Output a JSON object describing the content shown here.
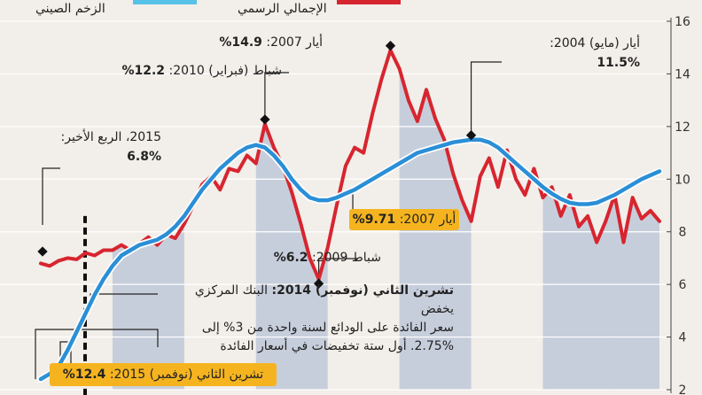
{
  "header": {
    "headline_fragment": "",
    "legend_china": "الزخم الصيني",
    "legend_official": "الإجمالي الرسمي"
  },
  "chart_data": {
    "type": "line",
    "ylim": [
      2,
      16
    ],
    "yticks": [
      2,
      4,
      6,
      8,
      10,
      12,
      14,
      16
    ],
    "colors": {
      "official": "#d7252f",
      "momentum": "#2b8fd6",
      "bands": "#b8c3d6",
      "bg": "#f2eee9"
    },
    "series": [
      {
        "name": "الإجمالي الرسمي",
        "color": "#d7252f",
        "points": [
          [
            2000.0,
            6.8
          ],
          [
            2000.25,
            6.7
          ],
          [
            2000.5,
            6.9
          ],
          [
            2000.75,
            7.0
          ],
          [
            2001.0,
            6.95
          ],
          [
            2001.25,
            7.2
          ],
          [
            2001.5,
            7.1
          ],
          [
            2001.75,
            7.3
          ],
          [
            2002.0,
            7.3
          ],
          [
            2002.25,
            7.5
          ],
          [
            2002.5,
            7.3
          ],
          [
            2002.75,
            7.55
          ],
          [
            2003.0,
            7.8
          ],
          [
            2003.25,
            7.5
          ],
          [
            2003.5,
            7.9
          ],
          [
            2003.75,
            7.75
          ],
          [
            2004.0,
            8.3
          ],
          [
            2004.25,
            9.0
          ],
          [
            2004.5,
            9.8
          ],
          [
            2004.75,
            10.1
          ],
          [
            2005.0,
            9.6
          ],
          [
            2005.25,
            10.4
          ],
          [
            2005.5,
            10.3
          ],
          [
            2005.75,
            10.9
          ],
          [
            2006.0,
            10.6
          ],
          [
            2006.25,
            12.1
          ],
          [
            2006.5,
            11.2
          ],
          [
            2006.75,
            10.5
          ],
          [
            2007.0,
            9.5
          ],
          [
            2007.25,
            8.3
          ],
          [
            2007.5,
            7.0
          ],
          [
            2007.75,
            6.2
          ],
          [
            2008.0,
            7.4
          ],
          [
            2008.25,
            9.0
          ],
          [
            2008.5,
            10.5
          ],
          [
            2008.75,
            11.2
          ],
          [
            2009.0,
            11.0
          ],
          [
            2009.25,
            12.5
          ],
          [
            2009.5,
            13.8
          ],
          [
            2009.75,
            14.9
          ],
          [
            2010.0,
            14.2
          ],
          [
            2010.25,
            13.0
          ],
          [
            2010.5,
            12.2
          ],
          [
            2010.75,
            13.4
          ],
          [
            2011.0,
            12.3
          ],
          [
            2011.25,
            11.5
          ],
          [
            2011.5,
            10.2
          ],
          [
            2011.75,
            9.2
          ],
          [
            2012.0,
            8.4
          ],
          [
            2012.25,
            10.1
          ],
          [
            2012.5,
            10.8
          ],
          [
            2012.75,
            9.7
          ],
          [
            2013.0,
            11.1
          ],
          [
            2013.25,
            10.0
          ],
          [
            2013.5,
            9.4
          ],
          [
            2013.75,
            10.4
          ],
          [
            2014.0,
            9.3
          ],
          [
            2014.25,
            9.7
          ],
          [
            2014.5,
            8.6
          ],
          [
            2014.75,
            9.4
          ],
          [
            2015.0,
            8.2
          ],
          [
            2015.25,
            8.6
          ],
          [
            2015.5,
            7.6
          ],
          [
            2015.75,
            8.4
          ],
          [
            2016.0,
            9.4
          ],
          [
            2016.25,
            7.6
          ],
          [
            2016.5,
            9.3
          ],
          [
            2016.75,
            8.5
          ],
          [
            2017.0,
            8.8
          ],
          [
            2017.25,
            8.4
          ]
        ]
      },
      {
        "name": "الزخم الصيني",
        "color": "#2b8fd6",
        "points": [
          [
            2000.0,
            2.4
          ],
          [
            2000.25,
            2.6
          ],
          [
            2000.5,
            2.9
          ],
          [
            2000.75,
            3.5
          ],
          [
            2001.0,
            4.2
          ],
          [
            2001.25,
            4.9
          ],
          [
            2001.5,
            5.6
          ],
          [
            2001.75,
            6.2
          ],
          [
            2002.0,
            6.7
          ],
          [
            2002.25,
            7.1
          ],
          [
            2002.5,
            7.3
          ],
          [
            2002.75,
            7.5
          ],
          [
            2003.0,
            7.6
          ],
          [
            2003.25,
            7.7
          ],
          [
            2003.5,
            7.9
          ],
          [
            2003.75,
            8.2
          ],
          [
            2004.0,
            8.6
          ],
          [
            2004.25,
            9.1
          ],
          [
            2004.5,
            9.6
          ],
          [
            2004.75,
            10.0
          ],
          [
            2005.0,
            10.4
          ],
          [
            2005.25,
            10.7
          ],
          [
            2005.5,
            11.0
          ],
          [
            2005.75,
            11.2
          ],
          [
            2006.0,
            11.3
          ],
          [
            2006.25,
            11.2
          ],
          [
            2006.5,
            10.9
          ],
          [
            2006.75,
            10.5
          ],
          [
            2007.0,
            10.0
          ],
          [
            2007.25,
            9.6
          ],
          [
            2007.5,
            9.3
          ],
          [
            2007.75,
            9.2
          ],
          [
            2008.0,
            9.2
          ],
          [
            2008.25,
            9.3
          ],
          [
            2008.5,
            9.45
          ],
          [
            2008.75,
            9.6
          ],
          [
            2009.0,
            9.8
          ],
          [
            2009.25,
            10.0
          ],
          [
            2009.5,
            10.2
          ],
          [
            2009.75,
            10.4
          ],
          [
            2010.0,
            10.6
          ],
          [
            2010.25,
            10.8
          ],
          [
            2010.5,
            11.0
          ],
          [
            2010.75,
            11.1
          ],
          [
            2011.0,
            11.2
          ],
          [
            2011.25,
            11.3
          ],
          [
            2011.5,
            11.4
          ],
          [
            2011.75,
            11.45
          ],
          [
            2012.0,
            11.5
          ],
          [
            2012.25,
            11.5
          ],
          [
            2012.5,
            11.4
          ],
          [
            2012.75,
            11.2
          ],
          [
            2013.0,
            10.9
          ],
          [
            2013.25,
            10.6
          ],
          [
            2013.5,
            10.3
          ],
          [
            2013.75,
            10.0
          ],
          [
            2014.0,
            9.7
          ],
          [
            2014.25,
            9.45
          ],
          [
            2014.5,
            9.25
          ],
          [
            2014.75,
            9.1
          ],
          [
            2015.0,
            9.05
          ],
          [
            2015.25,
            9.05
          ],
          [
            2015.5,
            9.1
          ],
          [
            2015.75,
            9.25
          ],
          [
            2016.0,
            9.4
          ],
          [
            2016.25,
            9.6
          ],
          [
            2016.5,
            9.8
          ],
          [
            2016.75,
            10.0
          ],
          [
            2017.0,
            10.15
          ],
          [
            2017.25,
            10.3
          ]
        ]
      }
    ],
    "bands_x": [
      2002,
      2004,
      2006,
      2008,
      2010,
      2012,
      2014,
      2016
    ],
    "band_labels": []
  },
  "annotations": [
    {
      "key": "may2007",
      "date": "أيار 2007:",
      "value": "14.9%"
    },
    {
      "key": "feb2010",
      "date": "شباط (فبراير) 2010:",
      "value": "12.2%"
    },
    {
      "key": "may2004",
      "date": "أيار (مايو) 2004:",
      "value": "11.5%"
    },
    {
      "key": "q4_2015",
      "date": "2015، الربع الأخير:",
      "value": "6.8%"
    },
    {
      "key": "feb2009",
      "date": "شباط 2009:",
      "value": "6.2%"
    },
    {
      "key": "may2007b",
      "date": "أيار 2007:",
      "value": "9.71%"
    },
    {
      "key": "nov2015",
      "date": "تشرين الثاني (نوفمبر) 2015:",
      "value": "12.4%"
    }
  ],
  "note": {
    "lead": "تشرين الثاني (نوفمبر) 2014:",
    "text1": " البنك المركزي يخفض",
    "text2": "سعر الفائدة على الودائع لسنة واحدة من 3% إلى",
    "text3": "2.75%. أول ستة تخفيضات في أسعار الفائدة"
  }
}
